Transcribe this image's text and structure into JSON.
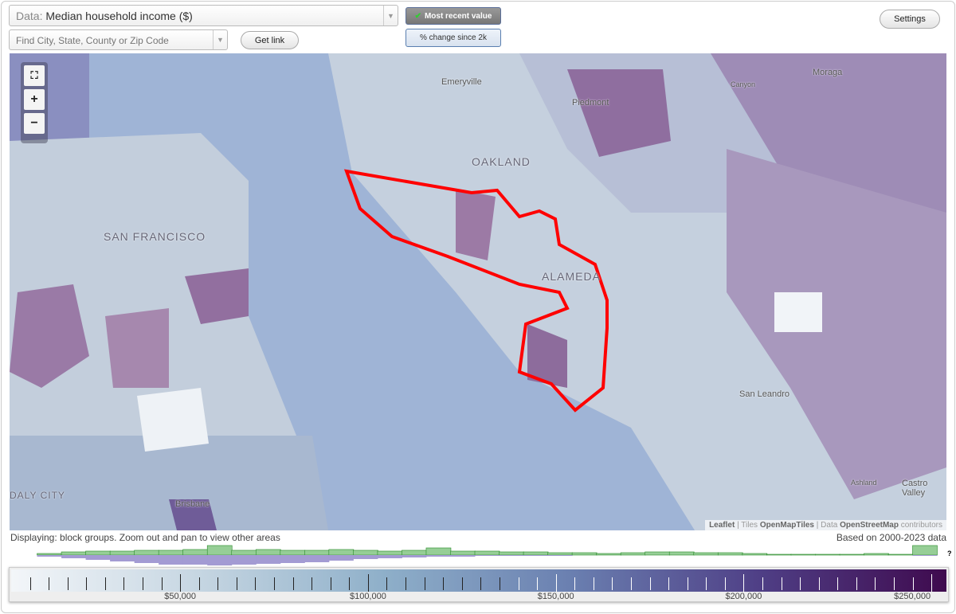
{
  "controls": {
    "data_label": "Data:",
    "data_value": "Median household income ($)",
    "search_placeholder": "Find City, State, County or Zip Code",
    "get_link": "Get link",
    "most_recent": "Most recent value",
    "pct_change": "% change since 2k",
    "settings": "Settings"
  },
  "map": {
    "labels": [
      "Emeryville",
      "Piedmont",
      "Canyon",
      "Moraga",
      "OAKLAND",
      "SAN FRANCISCO",
      "ALAMEDA",
      "San Leandro",
      "Ashland",
      "Castro Valley",
      "DALY CITY",
      "Brisbane"
    ],
    "attribution": {
      "leaflet": "Leaflet",
      "tiles_prefix": "Tiles",
      "tiles": "OpenMapTiles",
      "data_prefix": "Data",
      "data": "OpenStreetMap",
      "contrib": "contributors"
    },
    "colors": {
      "highlight": "#ff0000",
      "water": "#9fb4d6"
    }
  },
  "status": {
    "displaying": "Displaying: block groups. Zoom out and pan to view other areas",
    "based_on": "Based on 2000-2023 data",
    "unknown": "?"
  },
  "histogram": {
    "green": [
      0,
      2,
      4,
      5,
      5,
      6,
      6,
      7,
      12,
      6,
      7,
      6,
      6,
      7,
      6,
      5,
      6,
      9,
      5,
      5,
      4,
      4,
      3,
      3,
      2,
      3,
      4,
      4,
      3,
      3,
      2,
      1,
      1,
      1,
      1,
      2,
      1,
      12
    ],
    "purple": [
      0,
      2,
      4,
      6,
      8,
      10,
      12,
      12,
      13,
      12,
      11,
      10,
      9,
      7,
      5,
      4,
      3,
      2,
      2,
      1,
      1,
      1,
      1,
      0,
      0,
      0,
      0,
      0,
      0,
      0,
      0,
      0,
      0,
      0,
      0,
      0,
      0,
      1
    ],
    "colors": {
      "green": "#96ce96",
      "purple": "#a39bd3"
    }
  },
  "legend": {
    "min": 5000,
    "max": 254000,
    "ticks_every": 10000,
    "labels": [
      "$50,000",
      "$100,000",
      "$150,000",
      "$200,000",
      "$250,000"
    ],
    "label_values": [
      50000,
      100000,
      150000,
      200000,
      250000
    ]
  }
}
